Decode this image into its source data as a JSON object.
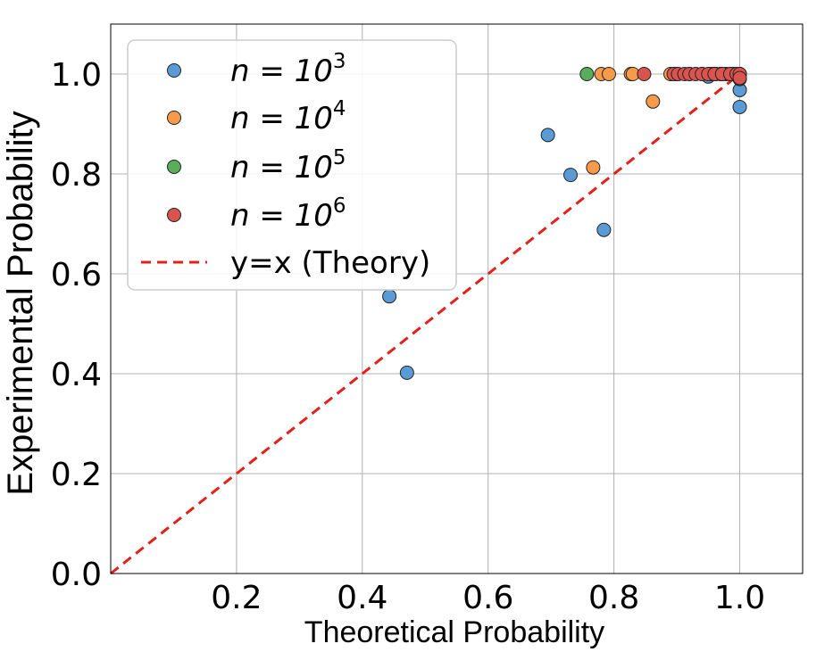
{
  "chart_data": {
    "type": "scatter",
    "title": "",
    "xlabel": "Theoretical Probability",
    "ylabel": "Experimental Probability",
    "xlim": [
      0.0,
      1.1
    ],
    "ylim": [
      0.0,
      1.1
    ],
    "xticks": [
      0.2,
      0.4,
      0.6,
      0.8,
      1.0
    ],
    "xtick_labels": [
      "0.2",
      "0.4",
      "0.6",
      "0.8",
      "1.0"
    ],
    "yticks": [
      0.0,
      0.2,
      0.4,
      0.6,
      0.8,
      1.0
    ],
    "ytick_labels": [
      "0.0",
      "0.2",
      "0.4",
      "0.6",
      "0.8",
      "1.0"
    ],
    "grid": true,
    "legend_position": "top-left",
    "series": [
      {
        "name_base": "n = 10",
        "name_exp": "3",
        "color": "#5a9bd5",
        "points": [
          {
            "x": 0.443,
            "y": 0.555
          },
          {
            "x": 0.471,
            "y": 0.402
          },
          {
            "x": 0.695,
            "y": 0.878
          },
          {
            "x": 0.731,
            "y": 0.798
          },
          {
            "x": 0.784,
            "y": 0.688
          },
          {
            "x": 0.95,
            "y": 0.995
          },
          {
            "x": 0.97,
            "y": 1.0
          },
          {
            "x": 1.0,
            "y": 0.968
          },
          {
            "x": 1.0,
            "y": 0.934
          },
          {
            "x": 1.0,
            "y": 0.99
          }
        ]
      },
      {
        "name_base": "n = 10",
        "name_exp": "4",
        "color": "#f79b4a",
        "points": [
          {
            "x": 0.767,
            "y": 0.813
          },
          {
            "x": 0.78,
            "y": 1.0
          },
          {
            "x": 0.792,
            "y": 1.0
          },
          {
            "x": 0.827,
            "y": 1.0
          },
          {
            "x": 0.83,
            "y": 1.0
          },
          {
            "x": 0.862,
            "y": 0.945
          },
          {
            "x": 0.89,
            "y": 1.0
          },
          {
            "x": 0.9,
            "y": 1.0
          },
          {
            "x": 0.92,
            "y": 1.0
          },
          {
            "x": 0.94,
            "y": 1.0
          },
          {
            "x": 0.96,
            "y": 1.0
          },
          {
            "x": 0.985,
            "y": 1.0
          },
          {
            "x": 1.0,
            "y": 1.0
          }
        ]
      },
      {
        "name_base": "n = 10",
        "name_exp": "5",
        "color": "#5aad5a",
        "points": [
          {
            "x": 0.757,
            "y": 1.0
          },
          {
            "x": 0.955,
            "y": 1.0
          },
          {
            "x": 0.962,
            "y": 1.0
          },
          {
            "x": 0.97,
            "y": 1.0
          },
          {
            "x": 0.978,
            "y": 1.0
          },
          {
            "x": 0.985,
            "y": 1.0
          },
          {
            "x": 0.99,
            "y": 1.0
          },
          {
            "x": 1.0,
            "y": 1.0
          }
        ]
      },
      {
        "name_base": "n = 10",
        "name_exp": "6",
        "color": "#d9534f",
        "points": [
          {
            "x": 0.848,
            "y": 1.0
          },
          {
            "x": 0.895,
            "y": 1.0
          },
          {
            "x": 0.902,
            "y": 1.0
          },
          {
            "x": 0.912,
            "y": 1.0
          },
          {
            "x": 0.92,
            "y": 1.0
          },
          {
            "x": 0.93,
            "y": 1.0
          },
          {
            "x": 0.94,
            "y": 1.0
          },
          {
            "x": 0.95,
            "y": 1.0
          },
          {
            "x": 0.96,
            "y": 1.0
          },
          {
            "x": 0.972,
            "y": 1.0
          },
          {
            "x": 0.985,
            "y": 1.0
          },
          {
            "x": 0.995,
            "y": 1.0
          },
          {
            "x": 1.0,
            "y": 1.0
          },
          {
            "x": 1.0,
            "y": 0.992
          }
        ]
      }
    ],
    "reference_line": {
      "name": "y=x (Theory)",
      "color": "#e3201b",
      "from": [
        0.0,
        0.0
      ],
      "to": [
        1.0,
        1.0
      ]
    }
  }
}
